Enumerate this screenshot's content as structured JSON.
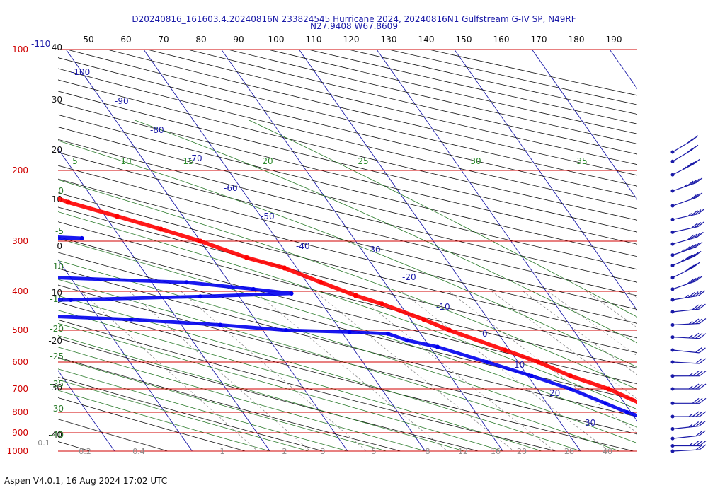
{
  "header": {
    "line1": "D20240816_161603.4.20240816N 233824545 Hurricane 2024, 20240816N1 Gulfstream G-IV SP, N49RF",
    "line2": "N27.9408 W67.8609"
  },
  "footer": {
    "text": "Aspen V4.0.1, 16 Aug 2024  17:02 UTC"
  },
  "colors": {
    "isobar": "#d00000",
    "isotherm": "#1a1aa8",
    "dry_adiabat": "#111111",
    "moist_adiabat": "#2a7a2a",
    "mixing_ratio": "#8a8a8a",
    "theta_e": "#2a8a2a",
    "temperature": "#ff0000",
    "dewpoint": "#0000ee",
    "wind": "#1a1aa8"
  },
  "chart_data": {
    "type": "skew-t",
    "top_axis_ticks": [
      "50",
      "60",
      "70",
      "80",
      "90",
      "100",
      "110",
      "120",
      "130",
      "140",
      "150",
      "160",
      "170",
      "180",
      "190"
    ],
    "pressure_levels": [
      {
        "label": "100",
        "p": 100
      },
      {
        "label": "200",
        "p": 200
      },
      {
        "label": "300",
        "p": 300
      },
      {
        "label": "400",
        "p": 400
      },
      {
        "label": "500",
        "p": 500
      },
      {
        "label": "600",
        "p": 600
      },
      {
        "label": "700",
        "p": 700
      },
      {
        "label": "800",
        "p": 800
      },
      {
        "label": "900",
        "p": 900
      },
      {
        "label": "1000",
        "p": 1000
      }
    ],
    "isotherm_labels": [
      {
        "text": "-110",
        "t": -110
      },
      {
        "text": "-100",
        "t": -100
      },
      {
        "text": "-90",
        "t": -90
      },
      {
        "text": "-80",
        "t": -80
      },
      {
        "text": "-70",
        "t": -70
      },
      {
        "text": "-60",
        "t": -60
      },
      {
        "text": "-50",
        "t": -50
      },
      {
        "text": "-40",
        "t": -40
      },
      {
        "text": "-30",
        "t": -30
      },
      {
        "text": "-20",
        "t": -20
      },
      {
        "text": "-10",
        "t": -10
      },
      {
        "text": "0",
        "t": 0
      },
      {
        "text": "10",
        "t": 10
      },
      {
        "text": "20",
        "t": 20
      },
      {
        "text": "30",
        "t": 30
      }
    ],
    "left_theta_labels": [
      "40",
      "30",
      "20",
      "10",
      "0",
      "-10",
      "-20",
      "-30",
      "-40"
    ],
    "left_green_labels": [
      "0",
      "-5",
      "-10",
      "-15",
      "-20",
      "-25",
      "-30",
      "-35",
      "-40"
    ],
    "theta_e_labels": [
      "5",
      "10",
      "15",
      "20",
      "25",
      "30",
      "35"
    ],
    "mixing_ratio_labels": [
      "0.1",
      "0.2",
      "0.4",
      "1",
      "2",
      "3",
      "5",
      "8",
      "12",
      "16",
      "20",
      "28",
      "40"
    ],
    "temperature_profile": [
      {
        "p": 1000,
        "t": 27.0
      },
      {
        "p": 985,
        "t": 22.5
      },
      {
        "p": 960,
        "t": 21.0
      },
      {
        "p": 925,
        "t": 20.4
      },
      {
        "p": 900,
        "t": 20.5
      },
      {
        "p": 850,
        "t": 18.6
      },
      {
        "p": 800,
        "t": 15.8
      },
      {
        "p": 760,
        "t": 12.0
      },
      {
        "p": 700,
        "t": 9.2
      },
      {
        "p": 650,
        "t": 5.5
      },
      {
        "p": 600,
        "t": 2.6
      },
      {
        "p": 560,
        "t": -0.6
      },
      {
        "p": 500,
        "t": -6.0
      },
      {
        "p": 470,
        "t": -8.3
      },
      {
        "p": 430,
        "t": -12.3
      },
      {
        "p": 410,
        "t": -14.9
      },
      {
        "p": 380,
        "t": -18.2
      },
      {
        "p": 350,
        "t": -21.6
      },
      {
        "p": 330,
        "t": -25.5
      },
      {
        "p": 300,
        "t": -30.0
      },
      {
        "p": 280,
        "t": -34.0
      },
      {
        "p": 260,
        "t": -38.5
      },
      {
        "p": 240,
        "t": -43.5
      },
      {
        "p": 225,
        "t": -46.5
      },
      {
        "p": 213,
        "t": -49.0
      },
      {
        "p": 195,
        "t": -54.0
      },
      {
        "p": 178,
        "t": -59.5
      }
    ],
    "dewpoint_profile": [
      {
        "p": 1000,
        "t": 22.5
      },
      {
        "p": 960,
        "t": 19.0
      },
      {
        "p": 930,
        "t": 17.5
      },
      {
        "p": 900,
        "t": 16.5
      },
      {
        "p": 870,
        "t": 15.3
      },
      {
        "p": 850,
        "t": 13.6
      },
      {
        "p": 830,
        "t": 11.5
      },
      {
        "p": 800,
        "t": 9.5
      },
      {
        "p": 760,
        "t": 7.5
      },
      {
        "p": 700,
        "t": 4.3
      },
      {
        "p": 650,
        "t": 0.5
      },
      {
        "p": 600,
        "t": -4.0
      },
      {
        "p": 550,
        "t": -9.0
      },
      {
        "p": 530,
        "t": -12.3
      },
      {
        "p": 510,
        "t": -14.2
      },
      {
        "p": 505,
        "t": -19.0
      },
      {
        "p": 500,
        "t": -27.0
      },
      {
        "p": 485,
        "t": -35.0
      },
      {
        "p": 470,
        "t": -46.0
      },
      {
        "p": 460,
        "t": -58.0
      },
      {
        "p": 450,
        "t": -68.0
      },
      {
        "p": 440,
        "t": -80.0
      },
      {
        "p": 430,
        "t": -86.0
      },
      {
        "p": 420,
        "t": -52.0
      },
      {
        "p": 412,
        "t": -35.0
      },
      {
        "p": 405,
        "t": -23.0
      },
      {
        "p": 395,
        "t": -27.5
      },
      {
        "p": 380,
        "t": -35.5
      },
      {
        "p": 365,
        "t": -60.0
      },
      {
        "p": 355,
        "t": -67.0
      },
      {
        "p": 342,
        "t": -69.5
      },
      {
        "p": 328,
        "t": -72.0
      },
      {
        "p": 312,
        "t": -73.5
      },
      {
        "p": 300,
        "t": -70.0
      },
      {
        "p": 297,
        "t": -58.0
      },
      {
        "p": 295,
        "t": -45.0
      },
      {
        "p": 292,
        "t": -50.0
      },
      {
        "p": 285,
        "t": -58.0
      },
      {
        "p": 278,
        "t": -64.0
      },
      {
        "p": 270,
        "t": -75.0
      },
      {
        "p": 265,
        "t": -79.0
      },
      {
        "p": 255,
        "t": -75.5
      },
      {
        "p": 245,
        "t": -66.0
      },
      {
        "p": 240,
        "t": -58.0
      },
      {
        "p": 236,
        "t": -56.0
      },
      {
        "p": 228,
        "t": -60.5
      },
      {
        "p": 224,
        "t": -70.0
      },
      {
        "p": 218,
        "t": -77.0
      },
      {
        "p": 213,
        "t": -82.0
      }
    ],
    "wind_barbs": [
      {
        "p": 180,
        "dir": 225,
        "spd": 30
      },
      {
        "p": 190,
        "dir": 225,
        "spd": 30
      },
      {
        "p": 205,
        "dir": 230,
        "spd": 35
      },
      {
        "p": 225,
        "dir": 240,
        "spd": 35
      },
      {
        "p": 245,
        "dir": 240,
        "spd": 30
      },
      {
        "p": 265,
        "dir": 250,
        "spd": 25
      },
      {
        "p": 285,
        "dir": 250,
        "spd": 30
      },
      {
        "p": 305,
        "dir": 245,
        "spd": 40
      },
      {
        "p": 325,
        "dir": 240,
        "spd": 45
      },
      {
        "p": 345,
        "dir": 235,
        "spd": 45
      },
      {
        "p": 370,
        "dir": 230,
        "spd": 40
      },
      {
        "p": 395,
        "dir": 240,
        "spd": 40
      },
      {
        "p": 420,
        "dir": 255,
        "spd": 35
      },
      {
        "p": 450,
        "dir": 260,
        "spd": 30
      },
      {
        "p": 485,
        "dir": 265,
        "spd": 25
      },
      {
        "p": 520,
        "dir": 275,
        "spd": 25
      },
      {
        "p": 560,
        "dir": 280,
        "spd": 20
      },
      {
        "p": 600,
        "dir": 275,
        "spd": 20
      },
      {
        "p": 650,
        "dir": 270,
        "spd": 25
      },
      {
        "p": 700,
        "dir": 270,
        "spd": 25
      },
      {
        "p": 760,
        "dir": 270,
        "spd": 30
      },
      {
        "p": 820,
        "dir": 270,
        "spd": 25
      },
      {
        "p": 880,
        "dir": 260,
        "spd": 25
      },
      {
        "p": 930,
        "dir": 260,
        "spd": 20
      },
      {
        "p": 970,
        "dir": 270,
        "spd": 25
      },
      {
        "p": 1000,
        "dir": 265,
        "spd": 20
      }
    ]
  }
}
